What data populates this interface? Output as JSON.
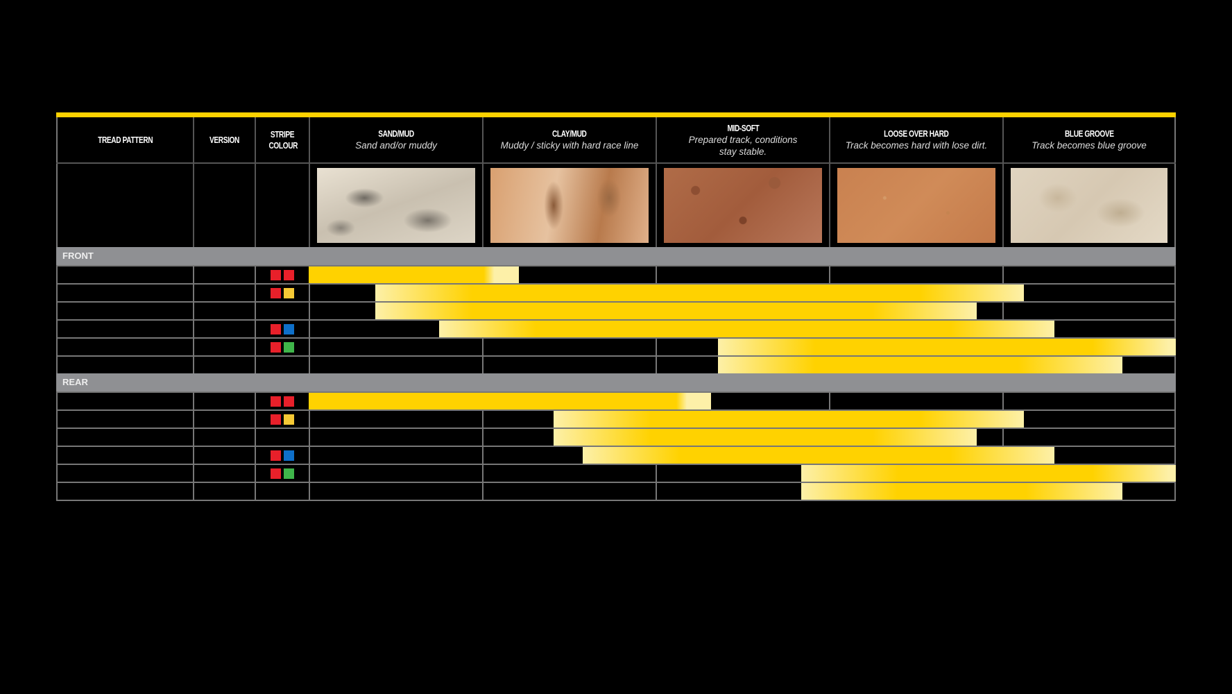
{
  "colors": {
    "accent": "#ffd200",
    "bar_pale": "#fdf0a8",
    "band": "#8f9093",
    "red": "#e8202a",
    "yellow": "#f6c935",
    "blue": "#0e6fc9",
    "green": "#3fb54a"
  },
  "columns": {
    "tread_pattern": "TREAD PATTERN",
    "version": "VERSION",
    "stripe_colour": "STRIPE COLOUR"
  },
  "conditions": [
    {
      "title": "SAND/MUD",
      "subtitle": "Sand and/or muddy",
      "texture": "sand"
    },
    {
      "title": "CLAY/MUD",
      "subtitle": "Muddy / sticky with hard race line",
      "texture": "clay"
    },
    {
      "title": "MID-SOFT",
      "subtitle": "Prepared track, conditions stay stable.",
      "texture": "midsoft"
    },
    {
      "title": "LOOSE OVER HARD",
      "subtitle": "Track becomes hard with lose dirt.",
      "texture": "loose"
    },
    {
      "title": "BLUE GROOVE",
      "subtitle": "Track becomes blue groove",
      "texture": "blue"
    }
  ],
  "sections": [
    {
      "label": "FRONT",
      "rows": [
        {
          "stripes": [
            "red",
            "red"
          ],
          "range": [
            0,
            1.21
          ]
        },
        {
          "stripes": [
            "red",
            "yellow"
          ],
          "range": [
            0.385,
            4.125
          ]
        },
        {
          "stripes": [],
          "range": [
            0.385,
            3.85
          ]
        },
        {
          "stripes": [
            "red",
            "blue"
          ],
          "range": [
            0.75,
            4.3
          ]
        },
        {
          "stripes": [
            "red",
            "green"
          ],
          "range": [
            2.36,
            5
          ]
        },
        {
          "stripes": [],
          "range": [
            2.36,
            4.69
          ]
        }
      ]
    },
    {
      "label": "REAR",
      "rows": [
        {
          "stripes": [
            "red",
            "red"
          ],
          "range": [
            0,
            2.32
          ]
        },
        {
          "stripes": [
            "red",
            "yellow"
          ],
          "range": [
            1.41,
            4.125
          ]
        },
        {
          "stripes": [],
          "range": [
            1.41,
            3.85
          ]
        },
        {
          "stripes": [
            "red",
            "blue"
          ],
          "range": [
            1.58,
            4.3
          ]
        },
        {
          "stripes": [
            "red",
            "green"
          ],
          "range": [
            2.84,
            5
          ]
        },
        {
          "stripes": [],
          "range": [
            2.84,
            4.69
          ]
        }
      ]
    }
  ]
}
